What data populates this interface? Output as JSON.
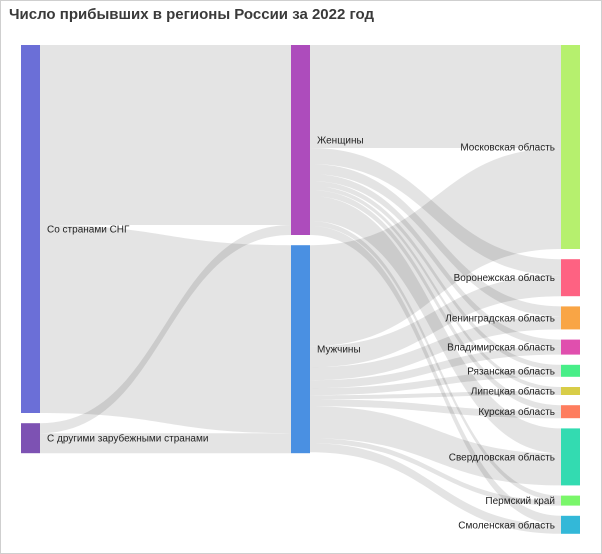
{
  "title": "Число прибывших в регионы России за 2022 год",
  "chart_data": {
    "type": "sankey",
    "title": "Число прибывших в регионы России за 2022 год",
    "value_units": "relative (estimated from band widths; no numbers printed)",
    "link_color": "#000000",
    "columns": [
      [
        {
          "id": "cis",
          "label": "Со странами СНГ",
          "color": "#6b6fd7"
        },
        {
          "id": "other",
          "label": "С другими зарубежными странами",
          "color": "#7d52b3"
        }
      ],
      [
        {
          "id": "women",
          "label": "Женщины",
          "color": "#ad4cbc"
        },
        {
          "id": "men",
          "label": "Мужчины",
          "color": "#4a90e2"
        }
      ],
      [
        {
          "id": "msk",
          "label": "Московская область",
          "color": "#b6f06e"
        },
        {
          "id": "vrn",
          "label": "Воронежская область",
          "color": "#fe6282"
        },
        {
          "id": "len",
          "label": "Ленинградская область",
          "color": "#f9a545"
        },
        {
          "id": "vla",
          "label": "Владимирская область",
          "color": "#e04fae"
        },
        {
          "id": "ryz",
          "label": "Рязанская область",
          "color": "#48ee88"
        },
        {
          "id": "lip",
          "label": "Липецкая область",
          "color": "#d8cd48"
        },
        {
          "id": "krs",
          "label": "Курская область",
          "color": "#fe7d5e"
        },
        {
          "id": "svd",
          "label": "Свердловская область",
          "color": "#33dbb1"
        },
        {
          "id": "prm",
          "label": "Пермский край",
          "color": "#7af66a"
        },
        {
          "id": "sml",
          "label": "Смоленская область",
          "color": "#33b8d8"
        }
      ]
    ],
    "links": [
      {
        "source": "cis",
        "target": "women",
        "value": 180
      },
      {
        "source": "cis",
        "target": "men",
        "value": 188
      },
      {
        "source": "other",
        "target": "women",
        "value": 10
      },
      {
        "source": "other",
        "target": "men",
        "value": 20
      },
      {
        "source": "women",
        "target": "msk",
        "value": 103
      },
      {
        "source": "women",
        "target": "vrn",
        "value": 16
      },
      {
        "source": "women",
        "target": "len",
        "value": 10
      },
      {
        "source": "women",
        "target": "vla",
        "value": 7
      },
      {
        "source": "women",
        "target": "ryz",
        "value": 5
      },
      {
        "source": "women",
        "target": "lip",
        "value": 4
      },
      {
        "source": "women",
        "target": "krs",
        "value": 6
      },
      {
        "source": "women",
        "target": "svd",
        "value": 25
      },
      {
        "source": "women",
        "target": "prm",
        "value": 5
      },
      {
        "source": "women",
        "target": "sml",
        "value": 9
      },
      {
        "source": "men",
        "target": "msk",
        "value": 101
      },
      {
        "source": "men",
        "target": "vrn",
        "value": 21
      },
      {
        "source": "men",
        "target": "len",
        "value": 13
      },
      {
        "source": "men",
        "target": "vla",
        "value": 8
      },
      {
        "source": "men",
        "target": "ryz",
        "value": 7
      },
      {
        "source": "men",
        "target": "lip",
        "value": 4
      },
      {
        "source": "men",
        "target": "krs",
        "value": 7
      },
      {
        "source": "men",
        "target": "svd",
        "value": 32
      },
      {
        "source": "men",
        "target": "prm",
        "value": 5
      },
      {
        "source": "men",
        "target": "sml",
        "value": 9
      }
    ]
  }
}
